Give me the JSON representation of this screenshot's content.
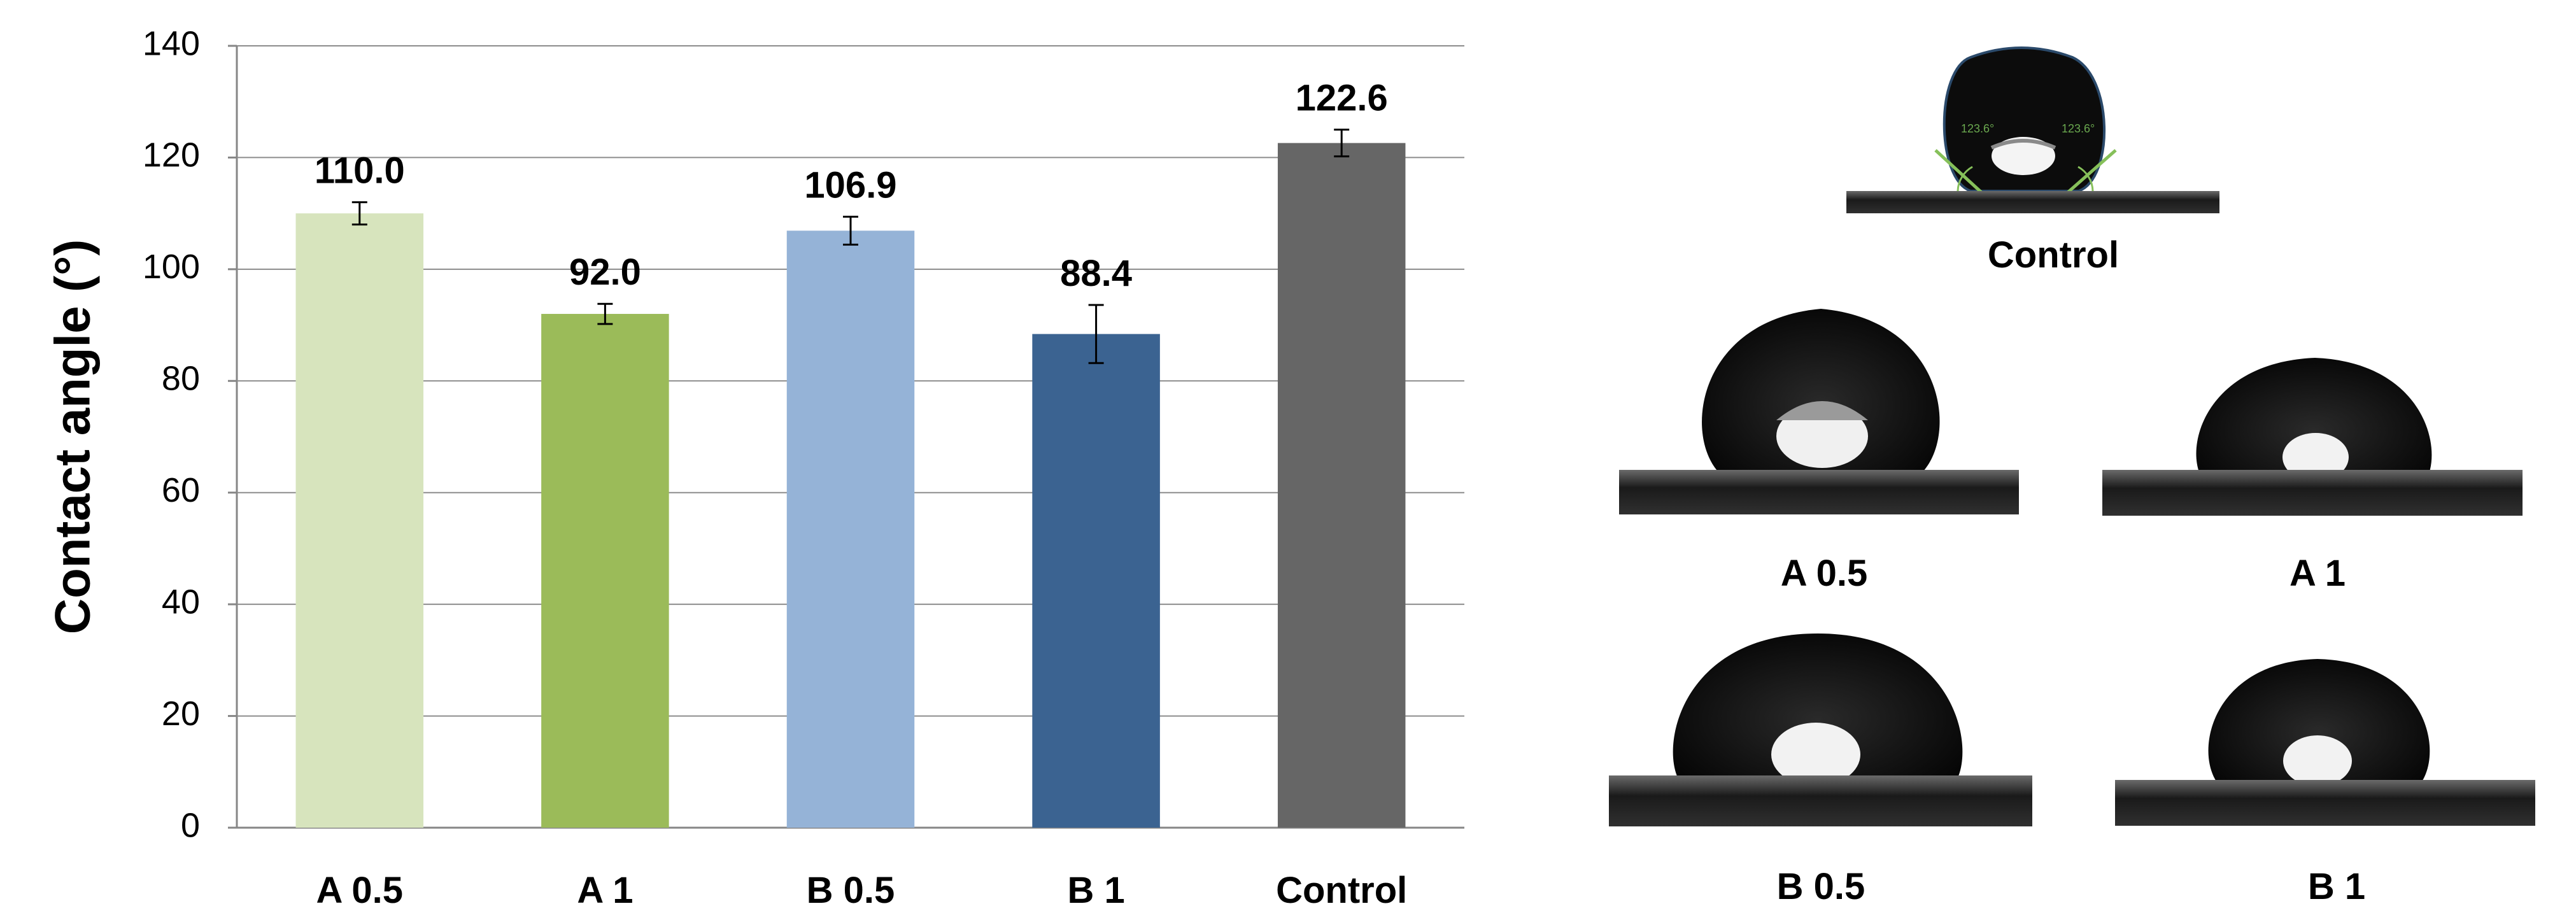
{
  "chart_data": {
    "type": "bar",
    "categories": [
      "A 0.5",
      "A 1",
      "B 0.5",
      "B 1",
      "Control"
    ],
    "values": [
      110.0,
      92.0,
      106.9,
      88.4,
      122.6
    ],
    "value_labels": [
      "110.0",
      "92.0",
      "106.9",
      "88.4",
      "122.6"
    ],
    "error_bars": [
      2.0,
      1.8,
      2.5,
      5.2,
      2.4
    ],
    "bar_colors": [
      "#d7e4bd",
      "#9bbb59",
      "#95b3d7",
      "#3b6391",
      "#666666"
    ],
    "title": "",
    "xlabel": "",
    "ylabel": "Contact angle (°)",
    "ylim": [
      0,
      140
    ],
    "yticks": [
      0,
      20,
      40,
      60,
      80,
      100,
      120,
      140
    ],
    "grid": true,
    "legend": false
  },
  "photos": {
    "items": [
      {
        "key": "control",
        "label": "Control"
      },
      {
        "key": "a05",
        "label": "A 0.5"
      },
      {
        "key": "a1",
        "label": "A 1"
      },
      {
        "key": "b05",
        "label": "B 0.5"
      },
      {
        "key": "b1",
        "label": "B 1"
      }
    ],
    "control_angle_left": "123.6°",
    "control_angle_right": "123.6°"
  }
}
